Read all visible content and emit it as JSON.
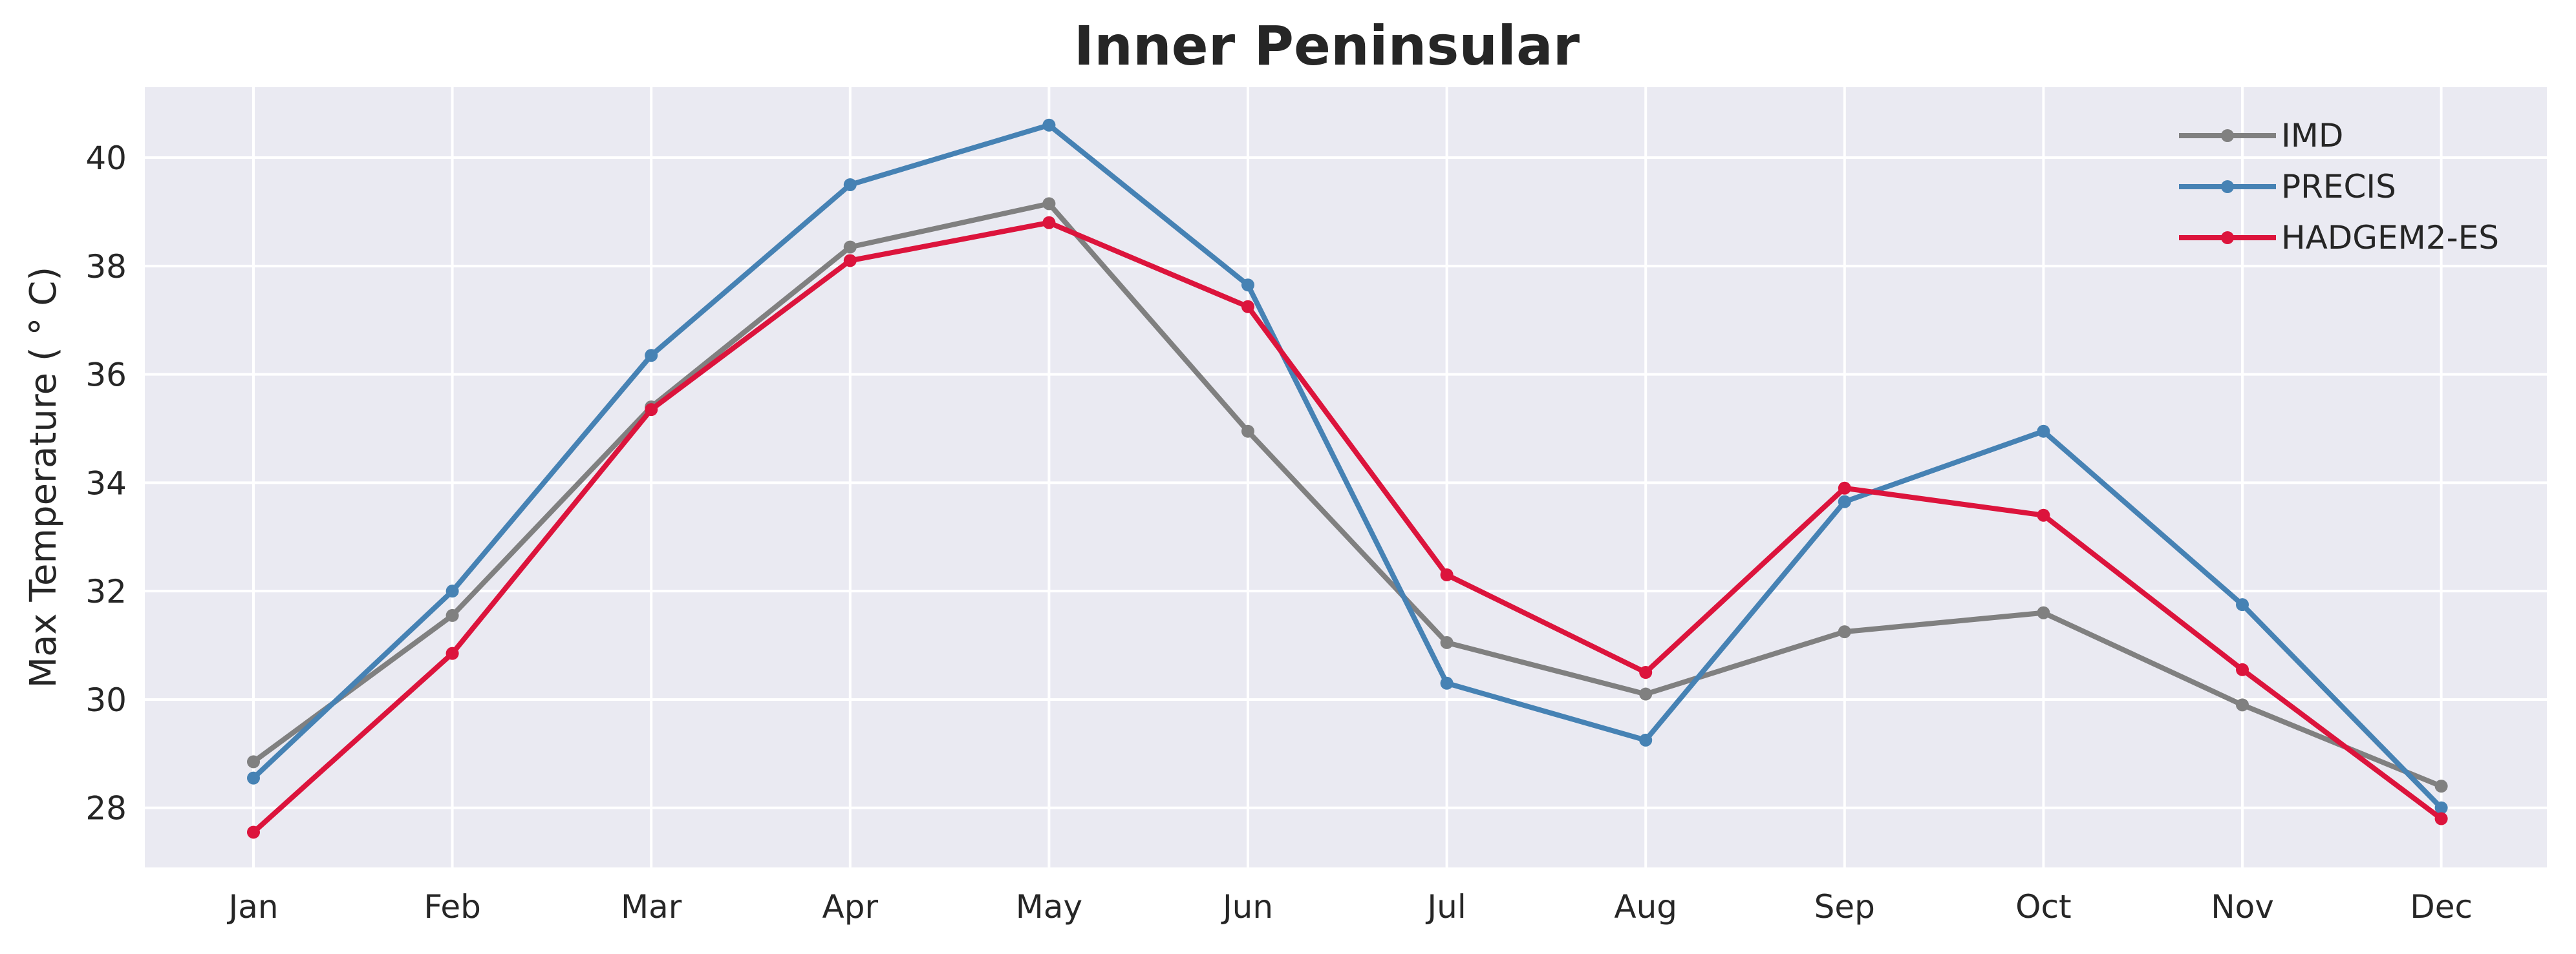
{
  "chart_data": {
    "type": "line",
    "title": "Inner Peninsular",
    "xlabel": "",
    "ylabel": "Max Temperature ($^\\circ$C)",
    "ylabel_display": "Max Temperature ( ° C)",
    "categories": [
      "Jan",
      "Feb",
      "Mar",
      "Apr",
      "May",
      "Jun",
      "Jul",
      "Aug",
      "Sep",
      "Oct",
      "Nov",
      "Dec"
    ],
    "ylim": [
      26.9,
      41.3
    ],
    "yticks": [
      28,
      30,
      32,
      34,
      36,
      38,
      40
    ],
    "grid": true,
    "legend_position": "top-right",
    "background_color": "#EAEAF2",
    "series": [
      {
        "name": "IMD",
        "color": "#808080",
        "values": [
          28.85,
          31.55,
          35.4,
          38.35,
          39.15,
          34.95,
          31.05,
          30.1,
          31.25,
          31.6,
          29.9,
          28.4
        ]
      },
      {
        "name": "PRECIS",
        "color": "#4682B4",
        "values": [
          28.55,
          32.0,
          36.35,
          39.5,
          40.6,
          37.65,
          30.3,
          29.25,
          33.65,
          34.95,
          31.75,
          28.0
        ]
      },
      {
        "name": "HADGEM2-ES",
        "color": "#DC143C",
        "values": [
          27.55,
          30.85,
          35.35,
          38.1,
          38.8,
          37.25,
          32.3,
          30.5,
          33.9,
          33.4,
          30.55,
          27.8
        ]
      }
    ]
  }
}
